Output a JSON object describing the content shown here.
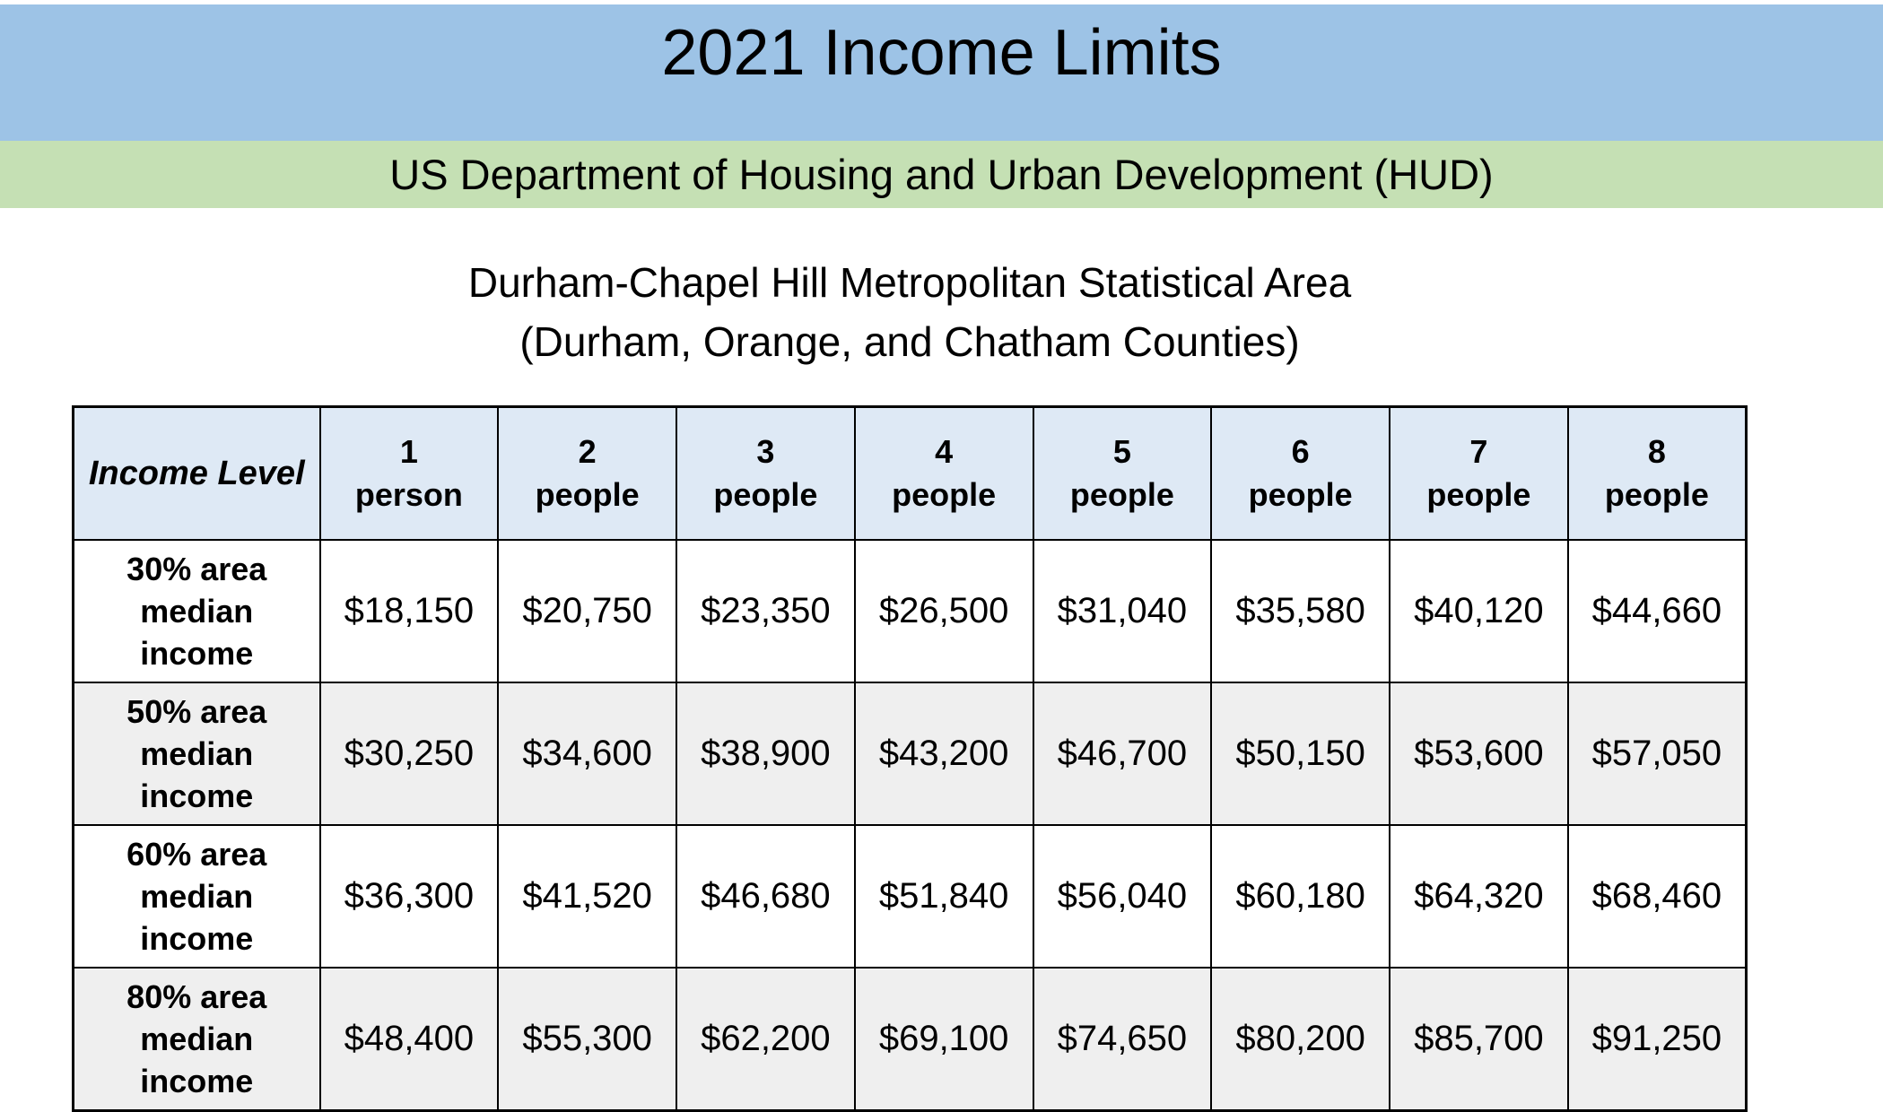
{
  "banner": {
    "title": "2021 Income Limits"
  },
  "subbanner": {
    "text": "US Department of Housing and Urban Development (HUD)"
  },
  "area": {
    "line1": "Durham-Chapel Hill Metropolitan Statistical Area",
    "line2": "(Durham, Orange, and Chatham Counties)"
  },
  "colors": {
    "banner_bg": "#9DC3E6",
    "subbanner_bg": "#C5E0B4",
    "table_header_bg": "#DEE9F5",
    "alt_row_bg": "#EFEFEF",
    "border": "#000000"
  },
  "table": {
    "corner_header": "Income Level",
    "column_headers": [
      "1\nperson",
      "2\npeople",
      "3\npeople",
      "4\npeople",
      "5\npeople",
      "6\npeople",
      "7\npeople",
      "8\npeople"
    ],
    "rows": [
      {
        "label": "30% area\nmedian\nincome",
        "values": [
          "$18,150",
          "$20,750",
          "$23,350",
          "$26,500",
          "$31,040",
          "$35,580",
          "$40,120",
          "$44,660"
        ]
      },
      {
        "label": "50% area\nmedian\nincome",
        "values": [
          "$30,250",
          "$34,600",
          "$38,900",
          "$43,200",
          "$46,700",
          "$50,150",
          "$53,600",
          "$57,050"
        ]
      },
      {
        "label": "60% area\nmedian\nincome",
        "values": [
          "$36,300",
          "$41,520",
          "$46,680",
          "$51,840",
          "$56,040",
          "$60,180",
          "$64,320",
          "$68,460"
        ]
      },
      {
        "label": "80% area\nmedian\nincome",
        "values": [
          "$48,400",
          "$55,300",
          "$62,200",
          "$69,100",
          "$74,650",
          "$80,200",
          "$85,700",
          "$91,250"
        ]
      }
    ]
  }
}
